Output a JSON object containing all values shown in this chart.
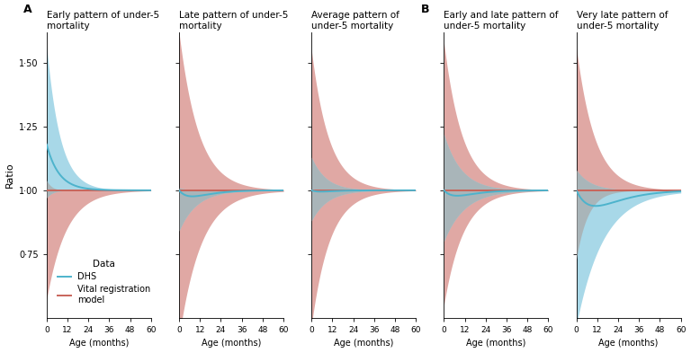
{
  "panels": [
    {
      "label": "A",
      "title": "Early pattern of under-5\nmortality"
    },
    {
      "label": "",
      "title": "Late pattern of under-5\nmortality"
    },
    {
      "label": "",
      "title": "Average pattern of\nunder-5 mortality"
    },
    {
      "label": "B",
      "title": "Early and late pattern of\nunder-5 mortality"
    },
    {
      "label": "",
      "title": "Very late pattern of\nunder-5 mortality"
    }
  ],
  "ylim": [
    0.5,
    1.62
  ],
  "yticks": [
    0.75,
    1.0,
    1.25,
    1.5
  ],
  "ytick_labels": [
    "0·75",
    "1·00",
    "1·25",
    "1·50"
  ],
  "xticks": [
    0,
    12,
    24,
    36,
    48,
    60
  ],
  "xlabel": "Age (months)",
  "ylabel": "Ratio",
  "blue_color": "#4db3cc",
  "pink_color": "#c8645a",
  "blue_fill": "#a8d8e8",
  "pink_fill": "#e0a8a4",
  "gray_fill": "#aaaaaa",
  "background": "#ffffff",
  "legend_title": "Data",
  "legend_dhs": "DHS",
  "legend_vr": "Vital registration\nmodel"
}
